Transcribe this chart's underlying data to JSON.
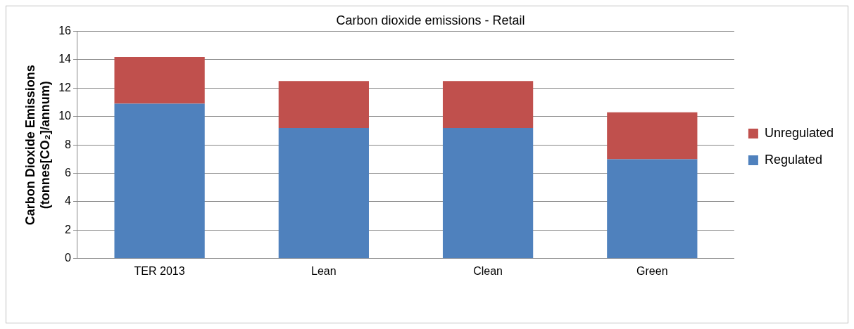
{
  "chart_data": {
    "type": "bar",
    "title": "Carbon dioxide emissions - Retail",
    "ylabel": "Carbon Dioxide Emissions (tonnes[CO₂]/annum)",
    "categories": [
      "TER 2013",
      "Lean",
      "Clean",
      "Green"
    ],
    "stacked": true,
    "series": [
      {
        "name": "Regulated",
        "color": "#4f81bd",
        "values": [
          10.9,
          9.2,
          9.2,
          7.0
        ]
      },
      {
        "name": "Unregulated",
        "color": "#c0504d",
        "values": [
          3.3,
          3.3,
          3.3,
          3.3
        ]
      }
    ],
    "ylim": [
      0,
      16
    ],
    "yticks": [
      0,
      2,
      4,
      6,
      8,
      10,
      12,
      14,
      16
    ],
    "grid": "y",
    "legend": "right"
  }
}
